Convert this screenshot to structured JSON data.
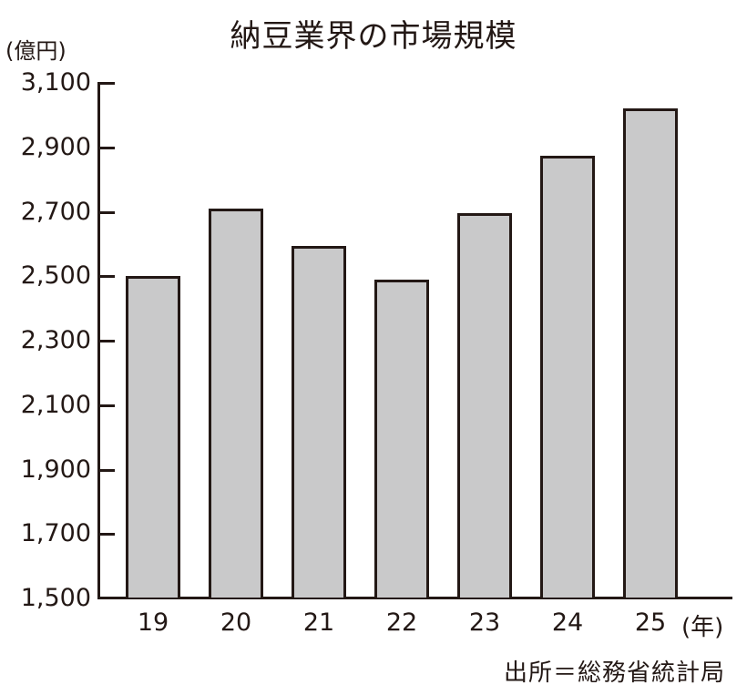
{
  "chart_data": {
    "type": "bar",
    "title": "納豆業界の市場規模",
    "ylabel": "(億円)",
    "xlabel": "(年)",
    "categories": [
      "19",
      "20",
      "21",
      "22",
      "23",
      "24",
      "25"
    ],
    "values": [
      2500,
      2710,
      2595,
      2490,
      2695,
      2875,
      3020
    ],
    "ylim": [
      1500,
      3100
    ],
    "yticks": [
      "3,100",
      "2,900",
      "2,700",
      "2,500",
      "2,300",
      "2,100",
      "1,900",
      "1,700",
      "1,500"
    ],
    "grid": false,
    "legend": null,
    "source": "出所＝総務省統計局",
    "bar_color": "#c9c9ca",
    "outline_color": "#231815"
  }
}
